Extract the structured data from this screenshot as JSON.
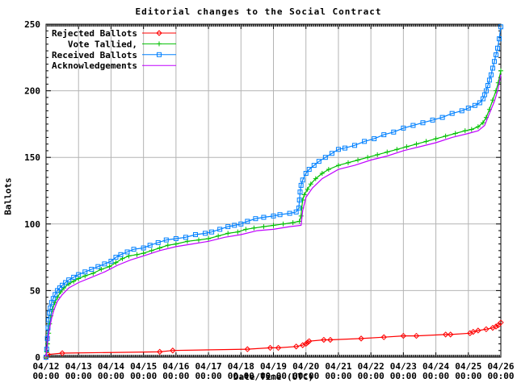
{
  "title": "Editorial changes to the Social Contract",
  "y_axis": {
    "label": "Ballots",
    "ticks": [
      0,
      50,
      100,
      150,
      200,
      250
    ],
    "range": [
      0,
      250
    ],
    "minor_step": 5
  },
  "x_axis": {
    "label": "Date/Time (UTC)",
    "tick_dates": [
      "04/12",
      "04/13",
      "04/14",
      "04/15",
      "04/16",
      "04/17",
      "04/18",
      "04/19",
      "04/20",
      "04/21",
      "04/22",
      "04/23",
      "04/24",
      "04/25",
      "04/26"
    ],
    "tick_time": "00:00",
    "range_days": [
      0,
      14
    ],
    "minor_ticks_per_day": 24
  },
  "colors": {
    "frame": "#000000",
    "grid": "#b4b4b4",
    "background": "#ffffff",
    "red": "#ff0000",
    "green": "#00c000",
    "blue": "#0080ff",
    "magenta": "#c000ff"
  },
  "chart_data": {
    "type": "line",
    "title": "Editorial changes to the Social Contract",
    "xlabel": "Date/Time (UTC)",
    "ylabel": "Ballots",
    "ylim": [
      0,
      250
    ],
    "xlim_days_from_0412": [
      0,
      14
    ],
    "grid": true,
    "legend_position": "top-left",
    "series": [
      {
        "name": "Rejected Ballots",
        "color": "#ff0000",
        "marker": "diamond",
        "points": [
          [
            0,
            0
          ],
          [
            0.06,
            2
          ],
          [
            0.5,
            3
          ],
          [
            3.5,
            4
          ],
          [
            3.9,
            5
          ],
          [
            6.2,
            6
          ],
          [
            6.9,
            7
          ],
          [
            7.15,
            7
          ],
          [
            7.7,
            8
          ],
          [
            7.9,
            9
          ],
          [
            8.0,
            10
          ],
          [
            8.05,
            11
          ],
          [
            8.1,
            12
          ],
          [
            8.55,
            13
          ],
          [
            8.75,
            13
          ],
          [
            9.7,
            14
          ],
          [
            10.4,
            15
          ],
          [
            11.0,
            16
          ],
          [
            11.4,
            16
          ],
          [
            12.3,
            17
          ],
          [
            12.45,
            17
          ],
          [
            13.05,
            18
          ],
          [
            13.15,
            19
          ],
          [
            13.3,
            20
          ],
          [
            13.55,
            21
          ],
          [
            13.75,
            22
          ],
          [
            13.85,
            23
          ],
          [
            13.92,
            24
          ],
          [
            14.0,
            26
          ]
        ]
      },
      {
        "name": "Vote Tallied,",
        "color": "#00c000",
        "marker": "plus",
        "points": [
          [
            0,
            0
          ],
          [
            0.02,
            4
          ],
          [
            0.05,
            10
          ],
          [
            0.08,
            18
          ],
          [
            0.11,
            25
          ],
          [
            0.15,
            31
          ],
          [
            0.2,
            36
          ],
          [
            0.27,
            41
          ],
          [
            0.35,
            45
          ],
          [
            0.45,
            49
          ],
          [
            0.55,
            52
          ],
          [
            0.7,
            55
          ],
          [
            0.85,
            57
          ],
          [
            1.0,
            59
          ],
          [
            1.2,
            61
          ],
          [
            1.45,
            63
          ],
          [
            1.7,
            66
          ],
          [
            1.95,
            68
          ],
          [
            2.15,
            71
          ],
          [
            2.35,
            74
          ],
          [
            2.55,
            76
          ],
          [
            2.8,
            77
          ],
          [
            3.0,
            78
          ],
          [
            3.25,
            80
          ],
          [
            3.5,
            82
          ],
          [
            3.75,
            84
          ],
          [
            4.0,
            85
          ],
          [
            4.35,
            87
          ],
          [
            4.7,
            88
          ],
          [
            5.0,
            89
          ],
          [
            5.3,
            91
          ],
          [
            5.6,
            93
          ],
          [
            5.9,
            94
          ],
          [
            6.15,
            96
          ],
          [
            6.4,
            97
          ],
          [
            6.7,
            98
          ],
          [
            7.0,
            99
          ],
          [
            7.3,
            100
          ],
          [
            7.6,
            101
          ],
          [
            7.8,
            102
          ],
          [
            7.85,
            106
          ],
          [
            7.87,
            112
          ],
          [
            7.9,
            118
          ],
          [
            7.95,
            122
          ],
          [
            8.05,
            126
          ],
          [
            8.15,
            130
          ],
          [
            8.3,
            134
          ],
          [
            8.5,
            138
          ],
          [
            8.7,
            141
          ],
          [
            9.0,
            144
          ],
          [
            9.3,
            146
          ],
          [
            9.6,
            148
          ],
          [
            9.9,
            150
          ],
          [
            10.2,
            152
          ],
          [
            10.5,
            154
          ],
          [
            10.8,
            156
          ],
          [
            11.1,
            158
          ],
          [
            11.4,
            160
          ],
          [
            11.7,
            162
          ],
          [
            12.0,
            164
          ],
          [
            12.3,
            166
          ],
          [
            12.6,
            168
          ],
          [
            12.9,
            170
          ],
          [
            13.1,
            171
          ],
          [
            13.3,
            173
          ],
          [
            13.45,
            176
          ],
          [
            13.55,
            180
          ],
          [
            13.65,
            186
          ],
          [
            13.75,
            193
          ],
          [
            13.85,
            200
          ],
          [
            13.92,
            206
          ],
          [
            14.0,
            215
          ]
        ]
      },
      {
        "name": "Received Ballots",
        "color": "#0080ff",
        "marker": "square",
        "points": [
          [
            0,
            0
          ],
          [
            0.02,
            6
          ],
          [
            0.04,
            14
          ],
          [
            0.06,
            22
          ],
          [
            0.08,
            28
          ],
          [
            0.1,
            33
          ],
          [
            0.13,
            37
          ],
          [
            0.17,
            41
          ],
          [
            0.22,
            44
          ],
          [
            0.28,
            47
          ],
          [
            0.35,
            50
          ],
          [
            0.42,
            52
          ],
          [
            0.5,
            54
          ],
          [
            0.6,
            56
          ],
          [
            0.7,
            58
          ],
          [
            0.85,
            60
          ],
          [
            1.0,
            62
          ],
          [
            1.2,
            64
          ],
          [
            1.4,
            66
          ],
          [
            1.6,
            68
          ],
          [
            1.8,
            70
          ],
          [
            2.0,
            72
          ],
          [
            2.15,
            75
          ],
          [
            2.3,
            77
          ],
          [
            2.5,
            79
          ],
          [
            2.7,
            81
          ],
          [
            3.0,
            82
          ],
          [
            3.2,
            84
          ],
          [
            3.45,
            86
          ],
          [
            3.7,
            88
          ],
          [
            4.0,
            89
          ],
          [
            4.3,
            90
          ],
          [
            4.6,
            92
          ],
          [
            4.9,
            93
          ],
          [
            5.1,
            94
          ],
          [
            5.35,
            96
          ],
          [
            5.6,
            98
          ],
          [
            5.8,
            99
          ],
          [
            6.0,
            100
          ],
          [
            6.2,
            102
          ],
          [
            6.45,
            104
          ],
          [
            6.7,
            105
          ],
          [
            7.0,
            106
          ],
          [
            7.2,
            107
          ],
          [
            7.5,
            108
          ],
          [
            7.7,
            109
          ],
          [
            7.78,
            112
          ],
          [
            7.8,
            118
          ],
          [
            7.82,
            124
          ],
          [
            7.85,
            129
          ],
          [
            7.9,
            133
          ],
          [
            8.0,
            138
          ],
          [
            8.1,
            141
          ],
          [
            8.25,
            144
          ],
          [
            8.4,
            147
          ],
          [
            8.6,
            150
          ],
          [
            8.8,
            153
          ],
          [
            9.0,
            156
          ],
          [
            9.2,
            157
          ],
          [
            9.5,
            159
          ],
          [
            9.8,
            162
          ],
          [
            10.1,
            164
          ],
          [
            10.4,
            167
          ],
          [
            10.7,
            169
          ],
          [
            11.0,
            172
          ],
          [
            11.3,
            174
          ],
          [
            11.6,
            176
          ],
          [
            11.9,
            178
          ],
          [
            12.2,
            180
          ],
          [
            12.5,
            183
          ],
          [
            12.8,
            185
          ],
          [
            13.0,
            187
          ],
          [
            13.2,
            189
          ],
          [
            13.35,
            191
          ],
          [
            13.45,
            194
          ],
          [
            13.5,
            197
          ],
          [
            13.55,
            200
          ],
          [
            13.6,
            204
          ],
          [
            13.65,
            208
          ],
          [
            13.7,
            212
          ],
          [
            13.75,
            217
          ],
          [
            13.8,
            222
          ],
          [
            13.85,
            227
          ],
          [
            13.9,
            232
          ],
          [
            13.95,
            239
          ],
          [
            14.0,
            248
          ]
        ]
      },
      {
        "name": "Acknowledgements",
        "color": "#c000ff",
        "marker": "none",
        "points": [
          [
            0,
            0
          ],
          [
            0.03,
            8
          ],
          [
            0.07,
            16
          ],
          [
            0.12,
            23
          ],
          [
            0.18,
            30
          ],
          [
            0.25,
            36
          ],
          [
            0.35,
            42
          ],
          [
            0.5,
            47
          ],
          [
            0.7,
            52
          ],
          [
            1.0,
            56
          ],
          [
            1.4,
            60
          ],
          [
            1.8,
            64
          ],
          [
            2.2,
            69
          ],
          [
            2.6,
            73
          ],
          [
            3.0,
            76
          ],
          [
            3.5,
            80
          ],
          [
            4.0,
            83
          ],
          [
            4.5,
            85
          ],
          [
            5.0,
            87
          ],
          [
            5.5,
            90
          ],
          [
            6.0,
            92
          ],
          [
            6.5,
            95
          ],
          [
            7.0,
            96
          ],
          [
            7.5,
            98
          ],
          [
            7.85,
            99
          ],
          [
            7.9,
            110
          ],
          [
            8.0,
            120
          ],
          [
            8.2,
            127
          ],
          [
            8.5,
            134
          ],
          [
            9.0,
            141
          ],
          [
            9.5,
            144
          ],
          [
            10.0,
            148
          ],
          [
            10.5,
            151
          ],
          [
            11.0,
            155
          ],
          [
            11.5,
            158
          ],
          [
            12.0,
            161
          ],
          [
            12.5,
            165
          ],
          [
            13.0,
            168
          ],
          [
            13.3,
            170
          ],
          [
            13.5,
            174
          ],
          [
            13.65,
            183
          ],
          [
            13.8,
            192
          ],
          [
            13.9,
            200
          ],
          [
            14.0,
            212
          ]
        ]
      }
    ]
  }
}
